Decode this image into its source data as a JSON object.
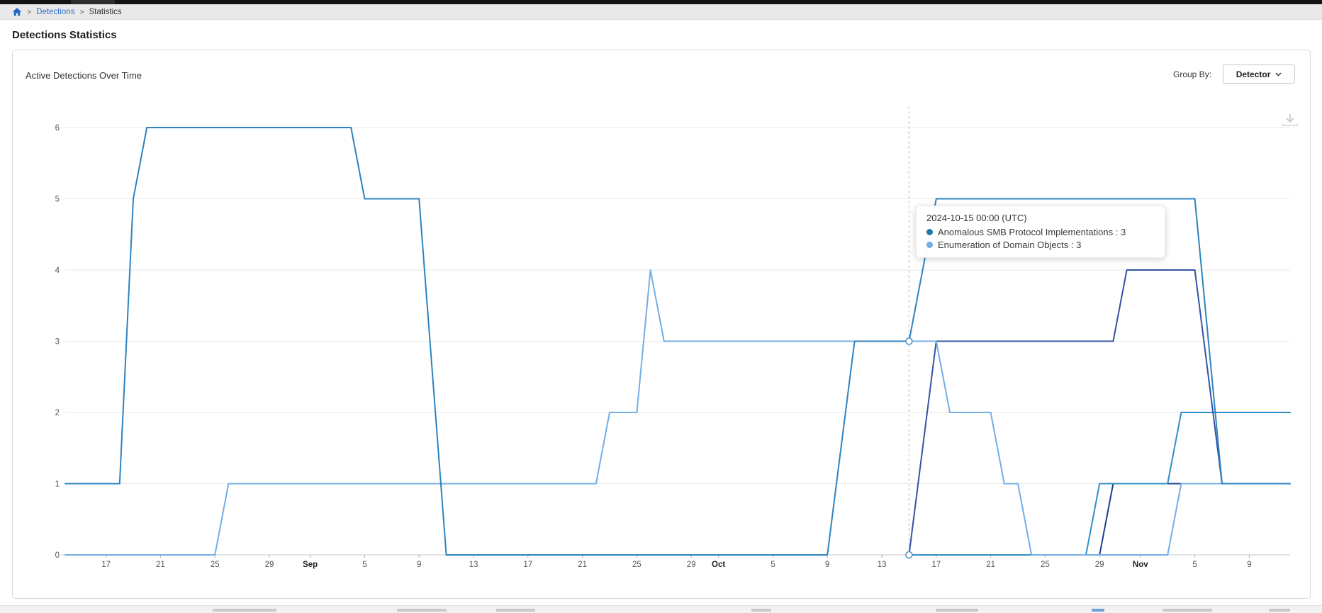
{
  "breadcrumb": {
    "separator": ">",
    "items": [
      {
        "label": "Detections",
        "link": true
      },
      {
        "label": "Statistics",
        "link": false
      }
    ]
  },
  "page": {
    "title": "Detections Statistics"
  },
  "panel": {
    "title": "Active Detections Over Time",
    "group_by_label": "Group By:",
    "group_by_value": "Detector",
    "icons": {
      "download": "download-icon",
      "chevron": "chevron-down-icon",
      "home": "home-icon"
    }
  },
  "tooltip": {
    "title": "2024-10-15 00:00 (UTC)",
    "rows": [
      {
        "label": "Anomalous SMB Protocol Implementations",
        "value": "3",
        "color": "#1f78ad"
      },
      {
        "label": "Enumeration of Domain Objects",
        "value": "3",
        "color": "#74aee6"
      }
    ]
  },
  "chart_data": {
    "type": "line",
    "title": "Active Detections Over Time",
    "xlabel": "",
    "ylabel": "",
    "x_range": [
      "2024-08-14",
      "2024-11-12"
    ],
    "ylim": [
      0,
      6
    ],
    "grid": true,
    "legend_position": "none",
    "y_ticks": [
      0,
      1,
      2,
      3,
      4,
      5,
      6
    ],
    "x_ticks": [
      {
        "label": "17",
        "date": "2024-08-17",
        "bold": false
      },
      {
        "label": "21",
        "date": "2024-08-21",
        "bold": false
      },
      {
        "label": "25",
        "date": "2024-08-25",
        "bold": false
      },
      {
        "label": "29",
        "date": "2024-08-29",
        "bold": false
      },
      {
        "label": "Sep",
        "date": "2024-09-01",
        "bold": true
      },
      {
        "label": "5",
        "date": "2024-09-05",
        "bold": false
      },
      {
        "label": "9",
        "date": "2024-09-09",
        "bold": false
      },
      {
        "label": "13",
        "date": "2024-09-13",
        "bold": false
      },
      {
        "label": "17",
        "date": "2024-09-17",
        "bold": false
      },
      {
        "label": "21",
        "date": "2024-09-21",
        "bold": false
      },
      {
        "label": "25",
        "date": "2024-09-25",
        "bold": false
      },
      {
        "label": "29",
        "date": "2024-09-29",
        "bold": false
      },
      {
        "label": "Oct",
        "date": "2024-10-01",
        "bold": true
      },
      {
        "label": "5",
        "date": "2024-10-05",
        "bold": false
      },
      {
        "label": "9",
        "date": "2024-10-09",
        "bold": false
      },
      {
        "label": "13",
        "date": "2024-10-13",
        "bold": false
      },
      {
        "label": "17",
        "date": "2024-10-17",
        "bold": false
      },
      {
        "label": "21",
        "date": "2024-10-21",
        "bold": false
      },
      {
        "label": "25",
        "date": "2024-10-25",
        "bold": false
      },
      {
        "label": "29",
        "date": "2024-10-29",
        "bold": false
      },
      {
        "label": "Nov",
        "date": "2024-11-01",
        "bold": true
      },
      {
        "label": "5",
        "date": "2024-11-05",
        "bold": false
      },
      {
        "label": "9",
        "date": "2024-11-09",
        "bold": false
      }
    ],
    "hover": {
      "date": "2024-10-15",
      "marker_values": [
        3,
        0
      ]
    },
    "series": [
      {
        "name": "Anomalous SMB Protocol Implementations",
        "color": "#2d83c0",
        "points": [
          [
            "2024-08-14",
            1
          ],
          [
            "2024-08-18",
            1
          ],
          [
            "2024-08-19",
            5
          ],
          [
            "2024-08-20",
            6
          ],
          [
            "2024-09-04",
            6
          ],
          [
            "2024-09-05",
            5
          ],
          [
            "2024-09-09",
            5
          ],
          [
            "2024-09-11",
            0
          ],
          [
            "2024-10-09",
            0
          ],
          [
            "2024-10-11",
            3
          ],
          [
            "2024-10-15",
            3
          ],
          [
            "2024-10-17",
            5
          ],
          [
            "2024-11-05",
            5
          ],
          [
            "2024-11-07",
            1
          ],
          [
            "2024-11-12",
            1
          ]
        ]
      },
      {
        "name": "Enumeration of Domain Objects",
        "color": "#74aee6",
        "points": [
          [
            "2024-08-14",
            0
          ],
          [
            "2024-08-25",
            0
          ],
          [
            "2024-08-26",
            1
          ],
          [
            "2024-09-22",
            1
          ],
          [
            "2024-09-23",
            2
          ],
          [
            "2024-09-25",
            2
          ],
          [
            "2024-09-26",
            4
          ],
          [
            "2024-09-27",
            3
          ],
          [
            "2024-10-17",
            3
          ],
          [
            "2024-10-18",
            2
          ],
          [
            "2024-10-21",
            2
          ],
          [
            "2024-10-22",
            1
          ],
          [
            "2024-10-23",
            1
          ],
          [
            "2024-10-24",
            0
          ],
          [
            "2024-11-03",
            0
          ],
          [
            "2024-11-04",
            1
          ],
          [
            "2024-11-12",
            1
          ]
        ]
      },
      {
        "name": "",
        "color": "#3353a4",
        "points": [
          [
            "2024-10-15",
            0
          ],
          [
            "2024-10-17",
            3
          ],
          [
            "2024-10-30",
            3
          ],
          [
            "2024-10-31",
            4
          ],
          [
            "2024-11-05",
            4
          ],
          [
            "2024-11-07",
            1
          ],
          [
            "2024-11-12",
            1
          ]
        ]
      },
      {
        "name": "",
        "color": "#2f8fc6",
        "points": [
          [
            "2024-10-15",
            0
          ],
          [
            "2024-10-28",
            0
          ],
          [
            "2024-10-29",
            1
          ],
          [
            "2024-11-03",
            1
          ],
          [
            "2024-11-04",
            2
          ],
          [
            "2024-11-12",
            2
          ]
        ]
      },
      {
        "name": "",
        "color": "#1d3f8c",
        "points": [
          [
            "2024-10-15",
            0
          ],
          [
            "2024-10-29",
            0
          ],
          [
            "2024-10-30",
            1
          ],
          [
            "2024-11-12",
            1
          ]
        ]
      }
    ]
  }
}
